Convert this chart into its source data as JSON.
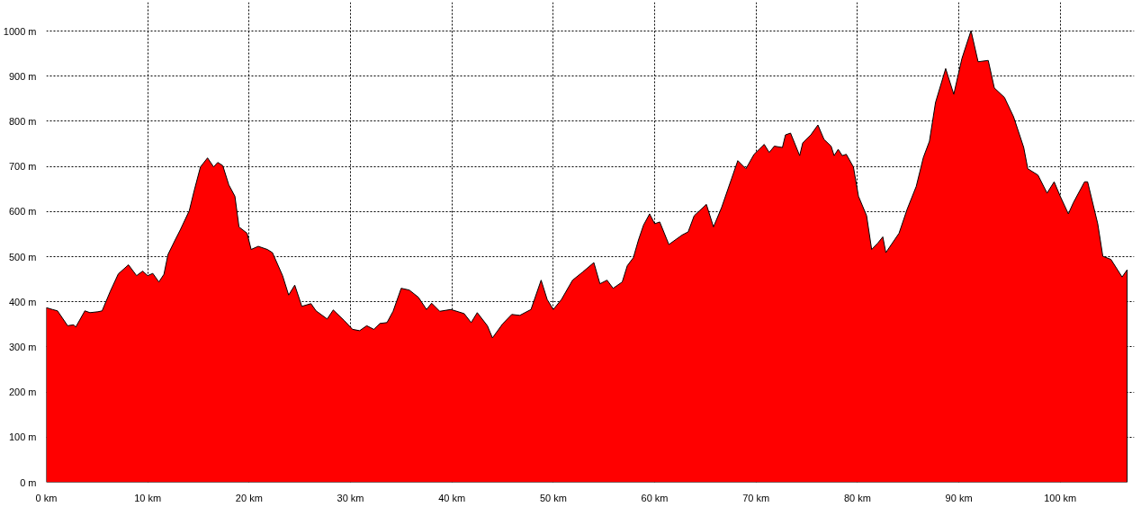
{
  "chart_data": {
    "type": "area",
    "x": [
      0,
      0.6,
      1.1,
      2.1,
      2.7,
      2.9,
      3.8,
      4.3,
      5.1,
      5.5,
      6.3,
      7.1,
      8.1,
      8.9,
      9.5,
      10.0,
      10.5,
      11.1,
      11.6,
      12.0,
      12.7,
      13.2,
      14.1,
      14.6,
      15.2,
      15.9,
      16.5,
      16.9,
      17.4,
      18.0,
      18.6,
      19.0,
      19.8,
      20.2,
      20.9,
      21.8,
      22.3,
      23.3,
      23.9,
      24.5,
      25.2,
      26.1,
      26.6,
      27.7,
      28.3,
      29.4,
      30.2,
      30.9,
      31.6,
      32.3,
      32.9,
      33.6,
      34.2,
      35.0,
      35.8,
      36.7,
      37.5,
      38.0,
      38.8,
      39.9,
      41.2,
      41.9,
      42.5,
      43.5,
      44.0,
      45.0,
      45.9,
      46.7,
      47.8,
      48.8,
      49.4,
      50.0,
      50.8,
      51.9,
      52.9,
      54.0,
      54.6,
      55.3,
      55.9,
      56.8,
      57.3,
      57.9,
      58.4,
      58.9,
      59.5,
      60.0,
      60.5,
      61.4,
      62.7,
      63.3,
      63.9,
      65.1,
      65.8,
      66.6,
      67.6,
      68.2,
      69.0,
      69.8,
      70.8,
      71.3,
      71.8,
      72.6,
      72.9,
      73.4,
      74.3,
      74.6,
      75.4,
      76.1,
      76.7,
      77.4,
      77.7,
      78.1,
      78.5,
      78.9,
      79.6,
      80.1,
      80.9,
      81.4,
      82.0,
      82.5,
      82.8,
      84.1,
      84.9,
      85.8,
      86.5,
      87.1,
      87.7,
      88.7,
      89.5,
      90.3,
      91.2,
      91.9,
      92.9,
      93.5,
      94.5,
      95.4,
      96.4,
      96.8,
      97.8,
      98.7,
      99.4,
      100.0,
      100.8,
      101.3,
      102.4,
      102.7,
      103.7,
      104.2,
      105.0,
      106.1,
      106.6
    ],
    "series": [
      {
        "color": "#ff0000",
        "values": [
          387,
          383,
          380,
          347,
          349,
          344,
          380,
          376,
          378,
          380,
          423,
          462,
          482,
          458,
          468,
          458,
          463,
          444,
          461,
          505,
          537,
          559,
          602,
          648,
          699,
          719,
          699,
          709,
          702,
          659,
          634,
          566,
          552,
          516,
          523,
          516,
          509,
          458,
          415,
          437,
          390,
          396,
          380,
          362,
          382,
          358,
          339,
          336,
          347,
          339,
          352,
          354,
          379,
          430,
          426,
          410,
          383,
          397,
          379,
          383,
          374,
          354,
          376,
          347,
          320,
          351,
          372,
          370,
          383,
          448,
          405,
          383,
          405,
          448,
          466,
          487,
          440,
          448,
          430,
          444,
          480,
          498,
          537,
          570,
          595,
          573,
          577,
          527,
          548,
          555,
          591,
          616,
          566,
          609,
          674,
          713,
          695,
          727,
          749,
          731,
          745,
          742,
          770,
          774,
          724,
          752,
          770,
          792,
          760,
          745,
          724,
          738,
          724,
          727,
          699,
          634,
          591,
          516,
          530,
          544,
          509,
          552,
          605,
          656,
          720,
          756,
          842,
          917,
          860,
          939,
          1001,
          932,
          935,
          874,
          853,
          810,
          742,
          695,
          681,
          641,
          666,
          634,
          595,
          620,
          666,
          666,
          573,
          501,
          494,
          455,
          471
        ]
      }
    ],
    "xlim": [
      0,
      107.3
    ],
    "ylim": [
      0,
      1064
    ],
    "xticks": [
      {
        "value": 0,
        "label": "0 km"
      },
      {
        "value": 10,
        "label": "10 km"
      },
      {
        "value": 20,
        "label": "20 km"
      },
      {
        "value": 30,
        "label": "30 km"
      },
      {
        "value": 40,
        "label": "40 km"
      },
      {
        "value": 50,
        "label": "50 km"
      },
      {
        "value": 60,
        "label": "60 km"
      },
      {
        "value": 70,
        "label": "70 km"
      },
      {
        "value": 80,
        "label": "80 km"
      },
      {
        "value": 90,
        "label": "90 km"
      },
      {
        "value": 100,
        "label": "100 km"
      }
    ],
    "yticks": [
      {
        "value": 0,
        "label": "0 m"
      },
      {
        "value": 100,
        "label": "100 m"
      },
      {
        "value": 200,
        "label": "200 m"
      },
      {
        "value": 300,
        "label": "300 m"
      },
      {
        "value": 400,
        "label": "400 m"
      },
      {
        "value": 500,
        "label": "500 m"
      },
      {
        "value": 600,
        "label": "600 m"
      },
      {
        "value": 700,
        "label": "700 m"
      },
      {
        "value": 800,
        "label": "800 m"
      },
      {
        "value": 900,
        "label": "900 m"
      },
      {
        "value": 1000,
        "label": "1000 m"
      }
    ],
    "grid": true
  }
}
